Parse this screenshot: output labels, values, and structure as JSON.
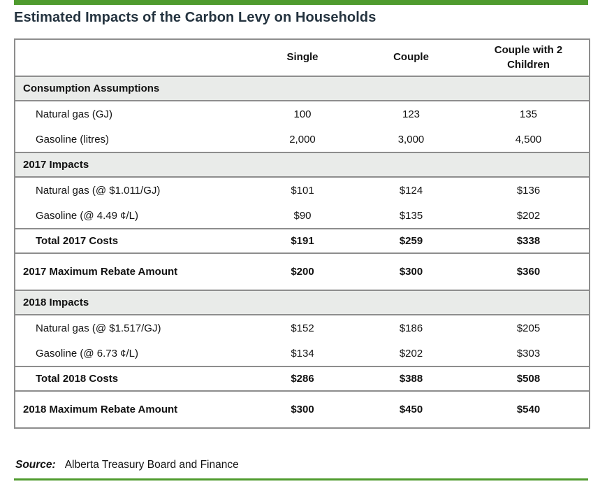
{
  "theme": {
    "accent_green": "#4f9b2e",
    "title_color": "#24333f",
    "border_gray": "#8d8d8d",
    "section_bg": "#e9ebe9"
  },
  "figure": {
    "title": "Estimated Impacts of the Carbon Levy on Households"
  },
  "table": {
    "column_headers": [
      "Single",
      "Couple",
      "Couple with 2 Children"
    ],
    "rows": [
      {
        "type": "section",
        "label": "Consumption Assumptions"
      },
      {
        "type": "data",
        "label": "Natural gas (GJ)",
        "values": [
          "100",
          "123",
          "135"
        ]
      },
      {
        "type": "data",
        "label": "Gasoline (litres)",
        "values": [
          "2,000",
          "3,000",
          "4,500"
        ]
      },
      {
        "type": "section",
        "label": "2017 Impacts"
      },
      {
        "type": "data",
        "label": "Natural gas (@ $1.011/GJ)",
        "values": [
          "$101",
          "$124",
          "$136"
        ]
      },
      {
        "type": "data",
        "label": "Gasoline (@ 4.49 ¢/L)",
        "values": [
          "$90",
          "$135",
          "$202"
        ]
      },
      {
        "type": "total",
        "label": "Total 2017 Costs",
        "values": [
          "$191",
          "$259",
          "$338"
        ]
      },
      {
        "type": "rebate",
        "label": "2017 Maximum Rebate Amount",
        "values": [
          "$200",
          "$300",
          "$360"
        ]
      },
      {
        "type": "section",
        "label": "2018 Impacts"
      },
      {
        "type": "data",
        "label": "Natural gas (@ $1.517/GJ)",
        "values": [
          "$152",
          "$186",
          "$205"
        ]
      },
      {
        "type": "data",
        "label": "Gasoline (@ 6.73 ¢/L)",
        "values": [
          "$134",
          "$202",
          "$303"
        ]
      },
      {
        "type": "total",
        "label": "Total 2018 Costs",
        "values": [
          "$286",
          "$388",
          "$508"
        ]
      },
      {
        "type": "rebate",
        "label": "2018 Maximum Rebate Amount",
        "values": [
          "$300",
          "$450",
          "$540"
        ]
      }
    ]
  },
  "source": {
    "label": "Source:",
    "text": "Alberta Treasury Board and Finance"
  }
}
